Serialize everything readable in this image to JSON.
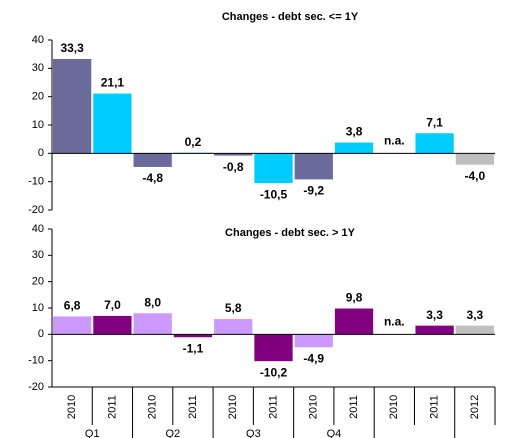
{
  "chart_data": [
    {
      "type": "bar",
      "title": "Changes - debt sec. <= 1Y",
      "values": [
        33.3,
        21.1,
        -4.8,
        0.2,
        -0.8,
        -10.5,
        -9.2,
        3.8,
        null,
        7.1,
        -4.0
      ],
      "value_labels": [
        "33,3",
        "21,1",
        "-4,8",
        "0,2",
        "-0,8",
        "-10,5",
        "-9,2",
        "3,8",
        "n.a.",
        "7,1",
        "-4,0"
      ],
      "colors": [
        "#6b6b9b",
        "#00ccff",
        "#6b6b9b",
        "#00ccff",
        "#6b6b9b",
        "#00ccff",
        "#6b6b9b",
        "#00ccff",
        "#6b6b9b",
        "#00ccff",
        "#bfbfbf"
      ],
      "ylim": [
        -20,
        40
      ],
      "yticks": [
        -20,
        -10,
        0,
        10,
        20,
        30,
        40
      ],
      "grid": false
    },
    {
      "type": "bar",
      "title": "Changes - debt sec. > 1Y",
      "categories": [
        "2010",
        "2011",
        "2010",
        "2011",
        "2010",
        "2011",
        "2010",
        "2011",
        "2010",
        "2011",
        "2012"
      ],
      "group_labels": [
        "Q1",
        "Q2",
        "Q3",
        "Q4"
      ],
      "values": [
        6.8,
        7.0,
        8.0,
        -1.1,
        5.8,
        -10.2,
        -4.9,
        9.8,
        null,
        3.3,
        3.3
      ],
      "value_labels": [
        "6,8",
        "7,0",
        "8,0",
        "-1,1",
        "5,8",
        "-10,2",
        "-4,9",
        "9,8",
        "n.a.",
        "3,3",
        "3,3"
      ],
      "colors": [
        "#cc99ff",
        "#800080",
        "#cc99ff",
        "#800080",
        "#cc99ff",
        "#800080",
        "#cc99ff",
        "#800080",
        "#cc99ff",
        "#800080",
        "#bfbfbf"
      ],
      "ylim": [
        -20,
        40
      ],
      "yticks": [
        -20,
        -10,
        0,
        10,
        20,
        30,
        40
      ],
      "grid": false
    }
  ]
}
